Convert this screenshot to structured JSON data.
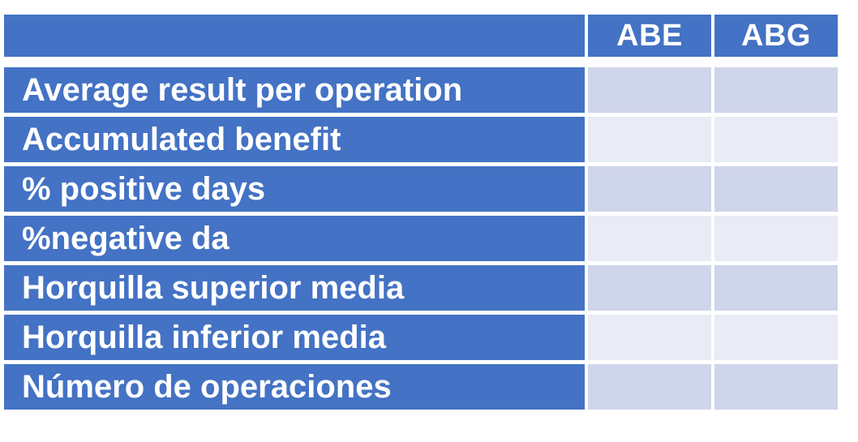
{
  "table": {
    "columns": [
      "ABE",
      "ABG"
    ],
    "rows": [
      "Average result per operation",
      "Accumulated benefit",
      "% positive days",
      "%negative da",
      "Horquilla superior media",
      "Horquilla inferior media",
      "Número de operaciones"
    ]
  },
  "colors": {
    "header_blue": "#4472c4",
    "cell_dark": "#cfd5ea",
    "cell_light": "#e9ebf5",
    "text": "#ffffff"
  }
}
